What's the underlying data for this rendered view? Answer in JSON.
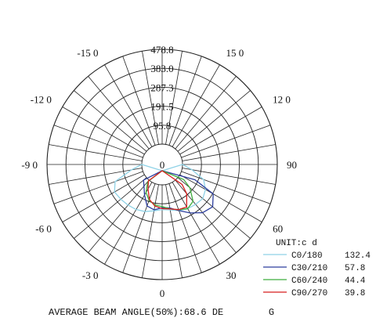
{
  "chart_data": {
    "type": "polar",
    "radial_ticks": [
      "478.8",
      "383.0",
      "287.3",
      "191.5",
      "95.8",
      "0"
    ],
    "radial_max": 478.8,
    "angle_labels": [
      {
        "text": "-15 0",
        "angle": -150
      },
      {
        "text": "15 0",
        "angle": 150
      },
      {
        "text": "-12 0",
        "angle": -120
      },
      {
        "text": "12 0",
        "angle": 120
      },
      {
        "text": "-9 0",
        "angle": -90
      },
      {
        "text": "90",
        "angle": 90
      },
      {
        "text": "-6 0",
        "angle": -60
      },
      {
        "text": "60",
        "angle": 60
      },
      {
        "text": "-3 0",
        "angle": -30
      },
      {
        "text": "30",
        "angle": 30
      },
      {
        "text": "0",
        "angle": 0
      }
    ],
    "unit_label": "UNIT:c d",
    "series": [
      {
        "name": "C0/180",
        "value": "132.4",
        "color": "#8fd2e6",
        "angles": [
          -90,
          -80,
          -70,
          -60,
          -50,
          -40,
          -30,
          -20,
          -10,
          0,
          10,
          20,
          30,
          40,
          50,
          60,
          70,
          80,
          90
        ],
        "values": [
          0,
          55,
          150,
          175,
          170,
          165,
          160,
          150,
          135,
          125,
          130,
          145,
          155,
          160,
          165,
          150,
          120,
          50,
          0
        ]
      },
      {
        "name": "C30/210",
        "value": "57.8",
        "color": "#2c3e9e",
        "angles": [
          -50,
          -40,
          -30,
          -20,
          -10,
          0,
          10,
          20,
          30,
          40,
          50,
          60,
          65
        ],
        "values": [
          20,
          40,
          75,
          120,
          130,
          115,
          120,
          145,
          180,
          215,
          230,
          195,
          80
        ]
      },
      {
        "name": "C60/240",
        "value": "44.4",
        "color": "#3fae3f",
        "angles": [
          -40,
          -30,
          -20,
          -10,
          0,
          10,
          20,
          30,
          40,
          50,
          55
        ],
        "values": [
          10,
          60,
          90,
          105,
          110,
          125,
          140,
          155,
          140,
          80,
          30
        ]
      },
      {
        "name": "C90/270",
        "value": "39.8",
        "color": "#d81f1f",
        "angles": [
          -40,
          -30,
          -20,
          -10,
          0,
          10,
          20,
          30,
          40,
          45
        ],
        "values": [
          5,
          40,
          85,
          110,
          120,
          125,
          140,
          145,
          90,
          40
        ]
      }
    ],
    "footer": "AVERAGE BEAM ANGLE(50%):68.6 DE        G"
  }
}
